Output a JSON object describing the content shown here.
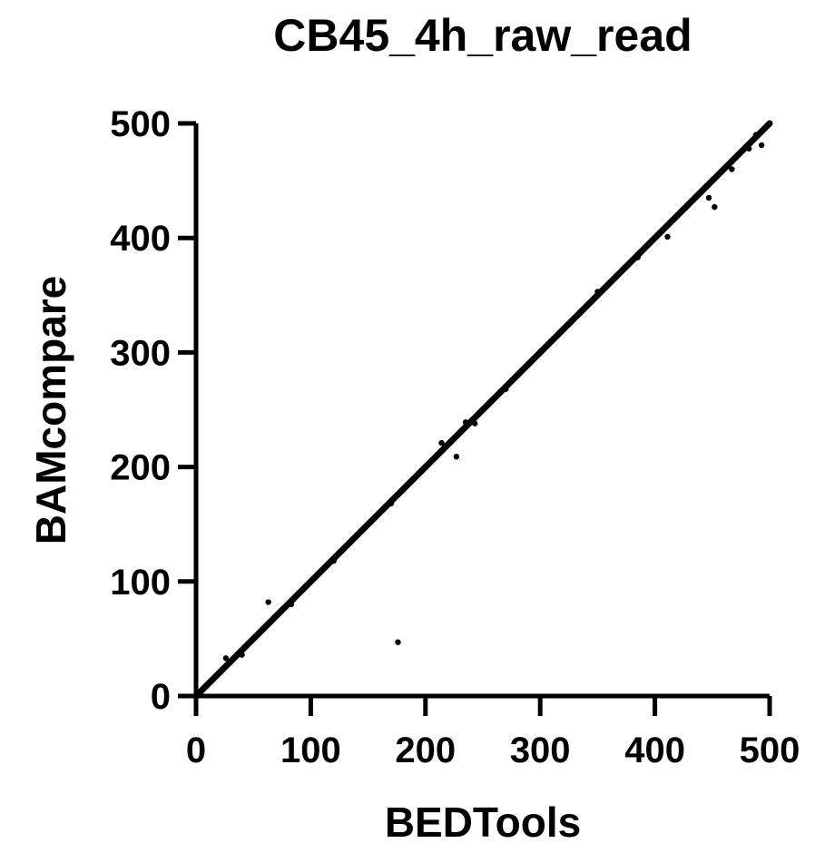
{
  "chart_data": {
    "type": "scatter",
    "title": "CB45_4h_raw_read",
    "xlabel": "BEDTools",
    "ylabel": "BAMcompare",
    "xlim": [
      0,
      500
    ],
    "ylim": [
      0,
      500
    ],
    "xticks": [
      0,
      100,
      200,
      300,
      400,
      500
    ],
    "yticks": [
      0,
      100,
      200,
      300,
      400,
      500
    ],
    "xtick_labels": [
      "0",
      "100",
      "200",
      "300",
      "400",
      "500"
    ],
    "ytick_labels": [
      "0",
      "100",
      "200",
      "300",
      "400",
      "500"
    ],
    "grid": false,
    "legend": "none",
    "point_color": "#000000",
    "line_color": "#000000",
    "series": [
      {
        "values": [
          [
            0,
            0
          ],
          [
            2,
            2
          ],
          [
            4,
            4
          ],
          [
            6,
            6
          ],
          [
            8,
            8
          ],
          [
            10,
            10
          ],
          [
            13,
            13
          ],
          [
            16,
            16
          ],
          [
            20,
            20
          ],
          [
            25,
            25
          ],
          [
            30,
            30
          ],
          [
            35,
            35
          ],
          [
            40,
            40
          ],
          [
            45,
            45
          ],
          [
            50,
            50
          ],
          [
            55,
            55
          ],
          [
            60,
            60
          ],
          [
            65,
            65
          ],
          [
            70,
            70
          ],
          [
            75,
            75
          ],
          [
            80,
            80
          ],
          [
            85,
            85
          ],
          [
            90,
            90
          ],
          [
            95,
            95
          ],
          [
            100,
            100
          ],
          [
            105,
            105
          ],
          [
            110,
            110
          ],
          [
            115,
            115
          ],
          [
            120,
            120
          ],
          [
            125,
            125
          ],
          [
            130,
            130
          ],
          [
            135,
            135
          ],
          [
            140,
            140
          ],
          [
            145,
            145
          ],
          [
            150,
            150
          ],
          [
            155,
            155
          ],
          [
            160,
            160
          ],
          [
            165,
            165
          ],
          [
            170,
            170
          ],
          [
            175,
            175
          ],
          [
            180,
            180
          ],
          [
            185,
            185
          ],
          [
            190,
            190
          ],
          [
            195,
            195
          ],
          [
            200,
            200
          ],
          [
            205,
            205
          ],
          [
            210,
            210
          ],
          [
            215,
            215
          ],
          [
            220,
            220
          ],
          [
            225,
            225
          ],
          [
            230,
            230
          ],
          [
            235,
            235
          ],
          [
            240,
            240
          ],
          [
            245,
            245
          ],
          [
            250,
            250
          ],
          [
            255,
            255
          ],
          [
            260,
            260
          ],
          [
            265,
            265
          ],
          [
            270,
            270
          ],
          [
            275,
            275
          ],
          [
            280,
            280
          ],
          [
            285,
            285
          ],
          [
            290,
            290
          ],
          [
            295,
            295
          ],
          [
            300,
            300
          ],
          [
            305,
            305
          ],
          [
            310,
            310
          ],
          [
            315,
            315
          ],
          [
            320,
            320
          ],
          [
            325,
            325
          ],
          [
            330,
            330
          ],
          [
            335,
            335
          ],
          [
            340,
            340
          ],
          [
            345,
            345
          ],
          [
            350,
            350
          ],
          [
            355,
            355
          ],
          [
            360,
            360
          ],
          [
            365,
            365
          ],
          [
            370,
            370
          ],
          [
            375,
            375
          ],
          [
            380,
            380
          ],
          [
            385,
            385
          ],
          [
            390,
            390
          ],
          [
            395,
            395
          ],
          [
            400,
            400
          ],
          [
            405,
            405
          ],
          [
            410,
            410
          ],
          [
            415,
            415
          ],
          [
            420,
            420
          ],
          [
            425,
            425
          ],
          [
            430,
            430
          ],
          [
            435,
            435
          ],
          [
            440,
            440
          ],
          [
            445,
            445
          ],
          [
            450,
            450
          ],
          [
            455,
            455
          ],
          [
            460,
            460
          ],
          [
            465,
            465
          ],
          [
            470,
            470
          ],
          [
            475,
            475
          ],
          [
            480,
            480
          ],
          [
            485,
            485
          ],
          [
            490,
            490
          ],
          [
            495,
            495
          ],
          [
            500,
            500
          ],
          [
            63,
            82
          ],
          [
            176,
            47
          ],
          [
            214,
            221
          ],
          [
            227,
            209
          ],
          [
            235,
            239
          ],
          [
            243,
            238
          ],
          [
            26,
            33
          ],
          [
            40,
            36
          ],
          [
            83,
            80
          ],
          [
            120,
            118
          ],
          [
            170,
            168
          ],
          [
            270,
            268
          ],
          [
            350,
            353
          ],
          [
            385,
            383
          ],
          [
            411,
            401
          ],
          [
            447,
            435
          ],
          [
            452,
            427
          ],
          [
            467,
            460
          ],
          [
            482,
            478
          ],
          [
            493,
            481
          ],
          [
            488,
            490
          ]
        ]
      }
    ]
  }
}
